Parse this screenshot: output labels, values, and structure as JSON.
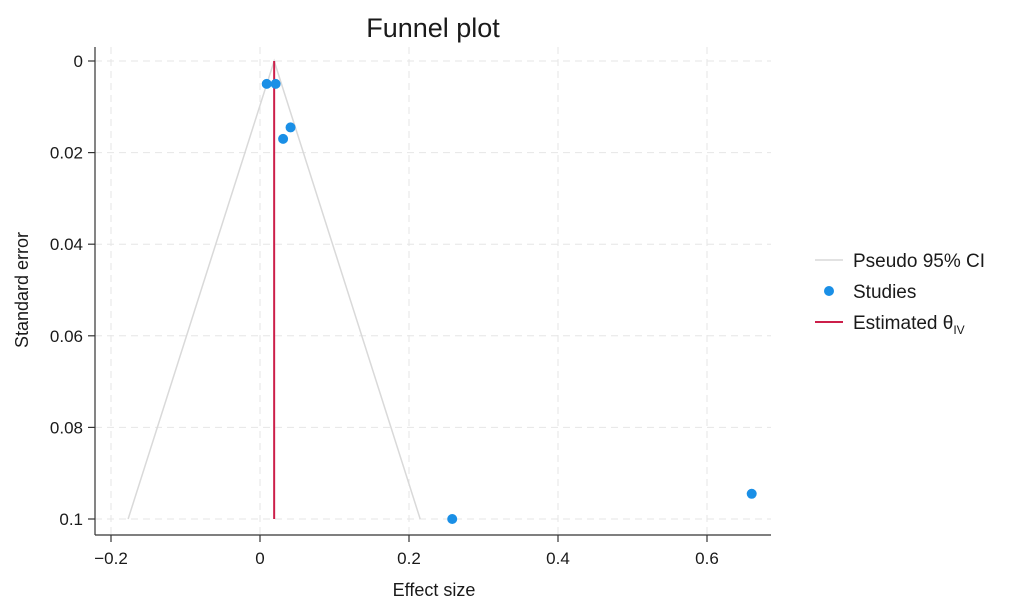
{
  "chart_data": {
    "type": "scatter",
    "title": "Funnel plot",
    "xlabel": "Effect size",
    "ylabel": "Standard error",
    "xlim": [
      -0.22,
      0.68
    ],
    "ylim": [
      0,
      0.103
    ],
    "y_reversed": true,
    "grid": true,
    "x_ticks": [
      -0.2,
      0,
      0.2,
      0.4,
      0.6
    ],
    "x_tick_labels": [
      "−0.2",
      "0",
      "0.2",
      "0.4",
      "0.6"
    ],
    "y_ticks": [
      0,
      0.02,
      0.04,
      0.06,
      0.08,
      0.1
    ],
    "y_tick_labels": [
      "0",
      "0.02",
      "0.04",
      "0.06",
      "0.08",
      "0.1"
    ],
    "legend_position": "right",
    "series": [
      {
        "name": "Pseudo 95% CI",
        "kind": "line",
        "color": "#d9d9d9",
        "x": [
          -0.177,
          0.019,
          0.215
        ],
        "y": [
          0.1,
          0,
          0.1
        ]
      },
      {
        "name": "Studies",
        "kind": "scatter",
        "color": "#1a8fe6",
        "x": [
          0.009,
          0.021,
          0.041,
          0.031,
          0.258,
          0.66
        ],
        "y": [
          0.005,
          0.005,
          0.0145,
          0.017,
          0.1,
          0.0945
        ]
      },
      {
        "name": "Estimated θ",
        "name_subscript": "IV",
        "kind": "vline",
        "color": "#cc1f4a",
        "x": [
          0.019,
          0.019
        ],
        "y": [
          0,
          0.1
        ]
      }
    ]
  }
}
